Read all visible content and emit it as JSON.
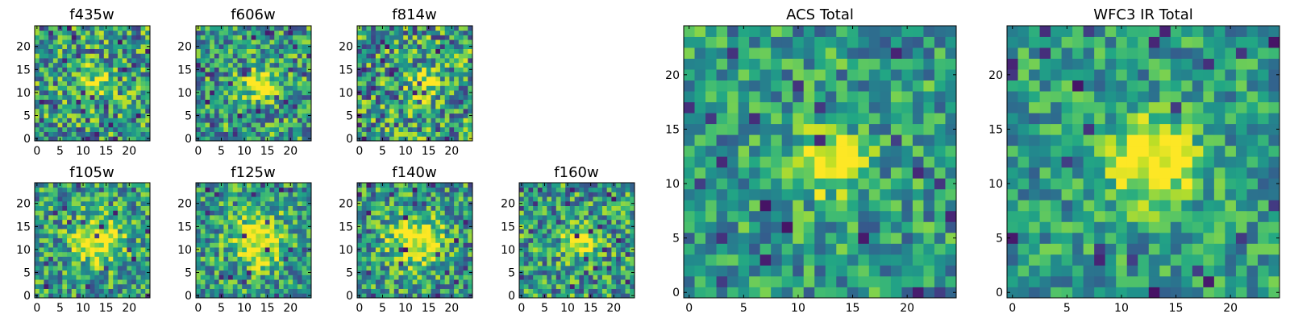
{
  "chart_data": [
    {
      "type": "heatmap",
      "title": "f435w",
      "grid_size": 25,
      "xticks": [
        "0",
        "5",
        "10",
        "15",
        "20"
      ],
      "yticks": [
        "0",
        "5",
        "10",
        "15",
        "20"
      ],
      "xlim": [
        0,
        25
      ],
      "ylim": [
        0,
        25
      ],
      "colormap": "viridis",
      "blob": {
        "x": 13,
        "y": 12,
        "strength": 0.35,
        "spread": 2.5
      },
      "noise_seed": 11,
      "noise_level": 0.75
    },
    {
      "type": "heatmap",
      "title": "f606w",
      "grid_size": 25,
      "xticks": [
        "0",
        "5",
        "10",
        "15",
        "20"
      ],
      "yticks": [
        "0",
        "5",
        "10",
        "15",
        "20"
      ],
      "xlim": [
        0,
        25
      ],
      "ylim": [
        0,
        25
      ],
      "colormap": "viridis",
      "blob": {
        "x": 13,
        "y": 12,
        "strength": 0.55,
        "spread": 2.3
      },
      "noise_seed": 23,
      "noise_level": 0.7
    },
    {
      "type": "heatmap",
      "title": "f814w",
      "grid_size": 25,
      "xticks": [
        "0",
        "5",
        "10",
        "15",
        "20"
      ],
      "yticks": [
        "0",
        "5",
        "10",
        "15",
        "20"
      ],
      "xlim": [
        0,
        25
      ],
      "ylim": [
        0,
        25
      ],
      "colormap": "viridis",
      "blob": {
        "x": 14,
        "y": 12,
        "strength": 0.4,
        "spread": 2.3
      },
      "noise_seed": 37,
      "noise_level": 0.8
    },
    {
      "type": "heatmap",
      "title": "f105w",
      "grid_size": 25,
      "xticks": [
        "0",
        "5",
        "10",
        "15",
        "20"
      ],
      "yticks": [
        "0",
        "5",
        "10",
        "15",
        "20"
      ],
      "xlim": [
        0,
        25
      ],
      "ylim": [
        0,
        25
      ],
      "colormap": "viridis",
      "blob": {
        "x": 13,
        "y": 12,
        "strength": 0.55,
        "spread": 3.5
      },
      "noise_seed": 41,
      "noise_level": 0.65
    },
    {
      "type": "heatmap",
      "title": "f125w",
      "grid_size": 25,
      "xticks": [
        "0",
        "5",
        "10",
        "15",
        "20"
      ],
      "yticks": [
        "0",
        "5",
        "10",
        "15",
        "20"
      ],
      "xlim": [
        0,
        25
      ],
      "ylim": [
        0,
        25
      ],
      "colormap": "viridis",
      "blob": {
        "x": 13,
        "y": 12,
        "strength": 0.55,
        "spread": 3.8
      },
      "noise_seed": 53,
      "noise_level": 0.65
    },
    {
      "type": "heatmap",
      "title": "f140w",
      "grid_size": 25,
      "xticks": [
        "0",
        "5",
        "10",
        "15",
        "20"
      ],
      "yticks": [
        "0",
        "5",
        "10",
        "15",
        "20"
      ],
      "xlim": [
        0,
        25
      ],
      "ylim": [
        0,
        25
      ],
      "colormap": "viridis",
      "blob": {
        "x": 12,
        "y": 12,
        "strength": 0.55,
        "spread": 3.8
      },
      "noise_seed": 67,
      "noise_level": 0.65
    },
    {
      "type": "heatmap",
      "title": "f160w",
      "grid_size": 25,
      "xticks": [
        "0",
        "5",
        "10",
        "15",
        "20"
      ],
      "yticks": [
        "0",
        "5",
        "10",
        "15",
        "20"
      ],
      "xlim": [
        0,
        25
      ],
      "ylim": [
        0,
        25
      ],
      "colormap": "viridis",
      "blob": {
        "x": 13,
        "y": 12,
        "strength": 0.6,
        "spread": 2.3
      },
      "noise_seed": 71,
      "noise_level": 0.7
    },
    {
      "type": "heatmap",
      "title": "ACS Total",
      "grid_size": 25,
      "xticks": [
        "0",
        "5",
        "10",
        "15",
        "20"
      ],
      "yticks": [
        "0",
        "5",
        "10",
        "15",
        "20"
      ],
      "xlim": [
        0,
        25
      ],
      "ylim": [
        0,
        25
      ],
      "colormap": "viridis",
      "blob": {
        "x": 13,
        "y": 12,
        "strength": 0.6,
        "spread": 2.0
      },
      "noise_seed": 83,
      "noise_level": 0.55
    },
    {
      "type": "heatmap",
      "title": "WFC3 IR Total",
      "grid_size": 25,
      "xticks": [
        "0",
        "5",
        "10",
        "15",
        "20"
      ],
      "yticks": [
        "0",
        "5",
        "10",
        "15",
        "20"
      ],
      "xlim": [
        0,
        25
      ],
      "ylim": [
        0,
        25
      ],
      "colormap": "viridis",
      "blob": {
        "x": 13,
        "y": 12,
        "strength": 0.65,
        "spread": 2.6
      },
      "noise_seed": 97,
      "noise_level": 0.5
    }
  ]
}
